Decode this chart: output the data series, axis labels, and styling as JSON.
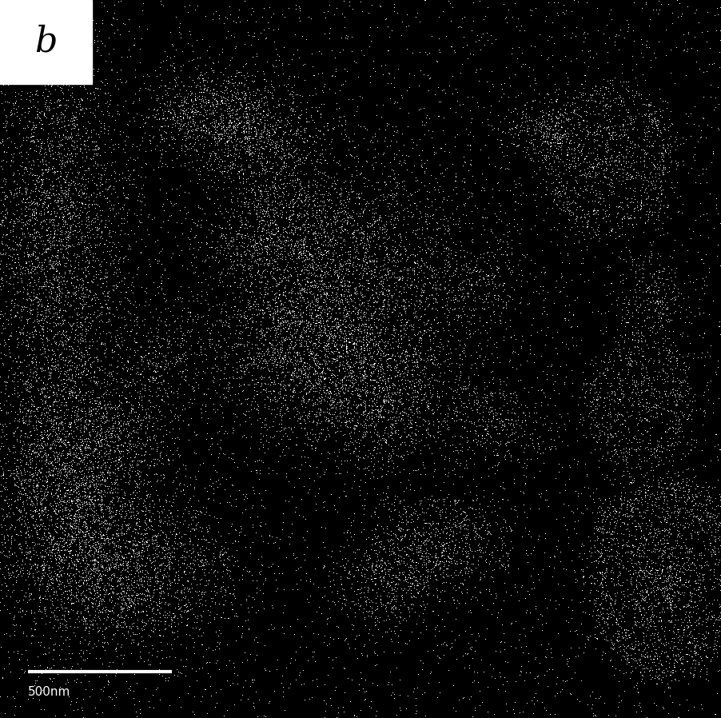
{
  "label": "b",
  "scale_bar_text": "500nm",
  "label_box_color": "#ffffff",
  "label_text_color": "#000000",
  "background_color": "#000000",
  "particle_color": "#ffffff",
  "scale_bar_color": "#ffffff",
  "label_fontsize": 32,
  "scale_fontsize": 11,
  "figsize": [
    9.03,
    8.98
  ],
  "dpi": 100,
  "seed": 42
}
